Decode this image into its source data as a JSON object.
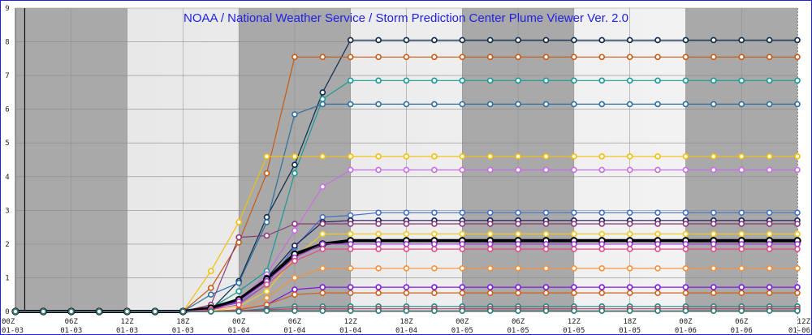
{
  "chart_data": {
    "type": "line",
    "title": "NOAA / National Weather Service / Storm Prediction Center Plume Viewer Ver. 2.0",
    "ylim": [
      0,
      9
    ],
    "yticks": [
      0,
      1,
      2,
      3,
      4,
      5,
      6,
      7,
      8,
      9
    ],
    "x": [
      "00Z 01-03",
      "03Z 01-03",
      "06Z 01-03",
      "09Z 01-03",
      "12Z 01-03",
      "15Z 01-03",
      "18Z 01-03",
      "21Z 01-03",
      "00Z 01-04",
      "03Z 01-04",
      "06Z 01-04",
      "09Z 01-04",
      "12Z 01-04",
      "15Z 01-04",
      "18Z 01-04",
      "21Z 01-04",
      "00Z 01-05",
      "03Z 01-05",
      "06Z 01-05",
      "09Z 01-05",
      "12Z 01-05",
      "15Z 01-05",
      "18Z 01-05",
      "21Z 01-05",
      "00Z 01-06",
      "03Z 01-06",
      "06Z 01-06",
      "09Z 01-06",
      "12Z 01-06"
    ],
    "xtick_labels": [
      {
        "time": "00Z",
        "date": "01-03"
      },
      {
        "time": "06Z",
        "date": "01-03"
      },
      {
        "time": "12Z",
        "date": "01-03"
      },
      {
        "time": "18Z",
        "date": "01-03"
      },
      {
        "time": "00Z",
        "date": "01-04"
      },
      {
        "time": "06Z",
        "date": "01-04"
      },
      {
        "time": "12Z",
        "date": "01-04"
      },
      {
        "time": "18Z",
        "date": "01-04"
      },
      {
        "time": "00Z",
        "date": "01-05"
      },
      {
        "time": "06Z",
        "date": "01-05"
      },
      {
        "time": "12Z",
        "date": "01-05"
      },
      {
        "time": "18Z",
        "date": "01-05"
      },
      {
        "time": "00Z",
        "date": "01-06"
      },
      {
        "time": "06Z",
        "date": "01-06"
      },
      {
        "time": "12Z",
        "date": "01-06"
      }
    ],
    "grid": true,
    "night_shading": [
      [
        "00Z 01-03",
        "12Z 01-03"
      ],
      [
        "00Z 01-04",
        "12Z 01-04"
      ],
      [
        "00Z 01-05",
        "12Z 01-05"
      ],
      [
        "00Z 01-06",
        "12Z 01-06"
      ]
    ],
    "current_time_line": "01Z 01-03",
    "colors": {
      "title": "#1f1fe6",
      "shade_dark": "#a9a9a9",
      "shade_light": "#f4f4f4"
    },
    "series": [
      {
        "color": "#0b2a4a",
        "values": [
          0,
          0,
          0,
          0,
          0,
          0,
          0,
          0.05,
          0.9,
          2.8,
          4.35,
          6.5,
          8.05,
          8.05,
          8.05,
          8.05,
          8.05,
          8.05,
          8.05,
          8.05,
          8.05,
          8.05,
          8.05,
          8.05,
          8.05,
          8.05,
          8.05,
          8.05,
          8.05
        ]
      },
      {
        "color": "#c85a12",
        "values": [
          0,
          0,
          0,
          0,
          0,
          0,
          0,
          0.7,
          2.05,
          4.1,
          7.55,
          7.55,
          7.55,
          7.55,
          7.55,
          7.55,
          7.55,
          7.55,
          7.55,
          7.55,
          7.55,
          7.55,
          7.55,
          7.55,
          7.55,
          7.55,
          7.55,
          7.55,
          7.55
        ]
      },
      {
        "color": "#1a9a96",
        "values": [
          0,
          0,
          0,
          0,
          0,
          0,
          0,
          0.1,
          0.6,
          1.2,
          4.1,
          6.3,
          6.85,
          6.85,
          6.85,
          6.85,
          6.85,
          6.85,
          6.85,
          6.85,
          6.85,
          6.85,
          6.85,
          6.85,
          6.85,
          6.85,
          6.85,
          6.85,
          6.85
        ]
      },
      {
        "color": "#2e6fa0",
        "values": [
          0,
          0,
          0,
          0,
          0,
          0,
          0,
          0.5,
          0.85,
          2.65,
          5.85,
          6.15,
          6.15,
          6.15,
          6.15,
          6.15,
          6.15,
          6.15,
          6.15,
          6.15,
          6.15,
          6.15,
          6.15,
          6.15,
          6.15,
          6.15,
          6.15,
          6.15,
          6.15
        ]
      },
      {
        "color": "#f2c00a",
        "values": [
          0,
          0,
          0,
          0,
          0,
          0,
          0,
          1.2,
          2.65,
          4.6,
          4.6,
          4.6,
          4.6,
          4.6,
          4.6,
          4.6,
          4.6,
          4.6,
          4.6,
          4.6,
          4.6,
          4.6,
          4.6,
          4.6,
          4.6,
          4.6,
          4.6,
          4.6,
          4.6
        ]
      },
      {
        "color": "#c86de6",
        "values": [
          0,
          0,
          0,
          0,
          0,
          0,
          0,
          0.05,
          0.35,
          1.1,
          2.4,
          3.7,
          4.2,
          4.2,
          4.2,
          4.2,
          4.2,
          4.2,
          4.2,
          4.2,
          4.2,
          4.2,
          4.2,
          4.2,
          4.2,
          4.2,
          4.2,
          4.2,
          4.2
        ]
      },
      {
        "color": "#3f72c8",
        "values": [
          0,
          0,
          0,
          0,
          0,
          0,
          0,
          0.1,
          0.25,
          0.8,
          1.9,
          2.8,
          2.85,
          2.93,
          2.93,
          2.93,
          2.93,
          2.93,
          2.93,
          2.93,
          2.93,
          2.93,
          2.93,
          2.93,
          2.93,
          2.93,
          2.93,
          2.93,
          2.93
        ]
      },
      {
        "color": "#1c1c5c",
        "values": [
          0,
          0,
          0,
          0,
          0,
          0,
          0,
          0.05,
          0.3,
          1.0,
          1.95,
          2.65,
          2.7,
          2.7,
          2.7,
          2.7,
          2.7,
          2.7,
          2.7,
          2.7,
          2.7,
          2.7,
          2.7,
          2.7,
          2.7,
          2.7,
          2.7,
          2.7,
          2.7
        ]
      },
      {
        "color": "#8a3a7a",
        "values": [
          0,
          0,
          0,
          0,
          0,
          0,
          0,
          0.2,
          2.2,
          2.25,
          2.6,
          2.6,
          2.6,
          2.6,
          2.6,
          2.6,
          2.6,
          2.6,
          2.6,
          2.6,
          2.6,
          2.6,
          2.6,
          2.6,
          2.6,
          2.6,
          2.6,
          2.6,
          2.6
        ]
      },
      {
        "color": "#f0c828",
        "values": [
          0,
          0,
          0,
          0,
          0,
          0,
          0,
          0,
          0.15,
          0.6,
          1.6,
          2.3,
          2.3,
          2.3,
          2.3,
          2.3,
          2.3,
          2.3,
          2.3,
          2.3,
          2.3,
          2.3,
          2.3,
          2.3,
          2.3,
          2.3,
          2.3,
          2.3,
          2.3
        ]
      },
      {
        "color": "#000000",
        "values": [
          0,
          0,
          0,
          0,
          0,
          0,
          0,
          0.1,
          0.35,
          0.95,
          1.7,
          2.0,
          2.1,
          2.1,
          2.1,
          2.1,
          2.1,
          2.1,
          2.1,
          2.1,
          2.1,
          2.1,
          2.1,
          2.1,
          2.1,
          2.1,
          2.1,
          2.1,
          2.1
        ]
      },
      {
        "color": "#9a3ad4",
        "values": [
          0,
          0,
          0,
          0,
          0,
          0,
          0,
          0.05,
          0.3,
          0.9,
          1.6,
          2.0,
          2.0,
          2.0,
          2.0,
          2.0,
          2.0,
          2.0,
          2.0,
          2.0,
          2.0,
          2.0,
          2.0,
          2.0,
          2.0,
          2.0,
          2.0,
          2.0,
          2.0
        ]
      },
      {
        "color": "#e04a88",
        "values": [
          0,
          0,
          0,
          0,
          0,
          0,
          0,
          0.05,
          0.2,
          0.8,
          1.5,
          1.85,
          1.85,
          1.85,
          1.85,
          1.85,
          1.85,
          1.85,
          1.85,
          1.85,
          1.85,
          1.85,
          1.85,
          1.85,
          1.85,
          1.85,
          1.85,
          1.85,
          1.85
        ]
      },
      {
        "color": "#f5903a",
        "values": [
          0,
          0,
          0,
          0,
          0,
          0,
          0,
          0,
          0.05,
          0.4,
          1.0,
          1.28,
          1.28,
          1.28,
          1.28,
          1.28,
          1.28,
          1.28,
          1.28,
          1.28,
          1.28,
          1.28,
          1.28,
          1.28,
          1.28,
          1.28,
          1.28,
          1.28,
          1.28
        ]
      },
      {
        "color": "#7a1ae0",
        "values": [
          0,
          0,
          0,
          0,
          0,
          0,
          0,
          0,
          0.05,
          0.2,
          0.65,
          0.72,
          0.72,
          0.72,
          0.72,
          0.72,
          0.72,
          0.72,
          0.72,
          0.72,
          0.72,
          0.72,
          0.72,
          0.72,
          0.72,
          0.72,
          0.72,
          0.72,
          0.72
        ]
      },
      {
        "color": "#d2601a",
        "values": [
          0,
          0,
          0,
          0,
          0,
          0,
          0,
          0,
          0.05,
          0.2,
          0.5,
          0.55,
          0.55,
          0.55,
          0.55,
          0.55,
          0.55,
          0.55,
          0.55,
          0.55,
          0.55,
          0.55,
          0.55,
          0.55,
          0.55,
          0.55,
          0.55,
          0.55,
          0.55
        ]
      },
      {
        "color": "#1a8a8a",
        "values": [
          0,
          0,
          0,
          0,
          0,
          0,
          0,
          0,
          0.02,
          0.08,
          0.15,
          0.15,
          0.15,
          0.15,
          0.15,
          0.15,
          0.15,
          0.15,
          0.15,
          0.15,
          0.15,
          0.15,
          0.15,
          0.15,
          0.15,
          0.15,
          0.15,
          0.15,
          0.15
        ]
      },
      {
        "color": "#c83a5a",
        "values": [
          0,
          0,
          0,
          0,
          0,
          0,
          0,
          0,
          0.02,
          0.05,
          0.08,
          0.08,
          0.08,
          0.08,
          0.08,
          0.08,
          0.08,
          0.08,
          0.08,
          0.08,
          0.08,
          0.08,
          0.08,
          0.08,
          0.08,
          0.08,
          0.08,
          0.08,
          0.08
        ]
      },
      {
        "color": "#2a7a7a",
        "values": [
          0,
          0,
          0,
          0,
          0,
          0,
          0,
          0,
          0,
          0.02,
          0.02,
          0.02,
          0.02,
          0.02,
          0.02,
          0.02,
          0.02,
          0.02,
          0.02,
          0.02,
          0.02,
          0.02,
          0.02,
          0.02,
          0.02,
          0.02,
          0.02,
          0.02,
          0.02
        ]
      }
    ]
  }
}
